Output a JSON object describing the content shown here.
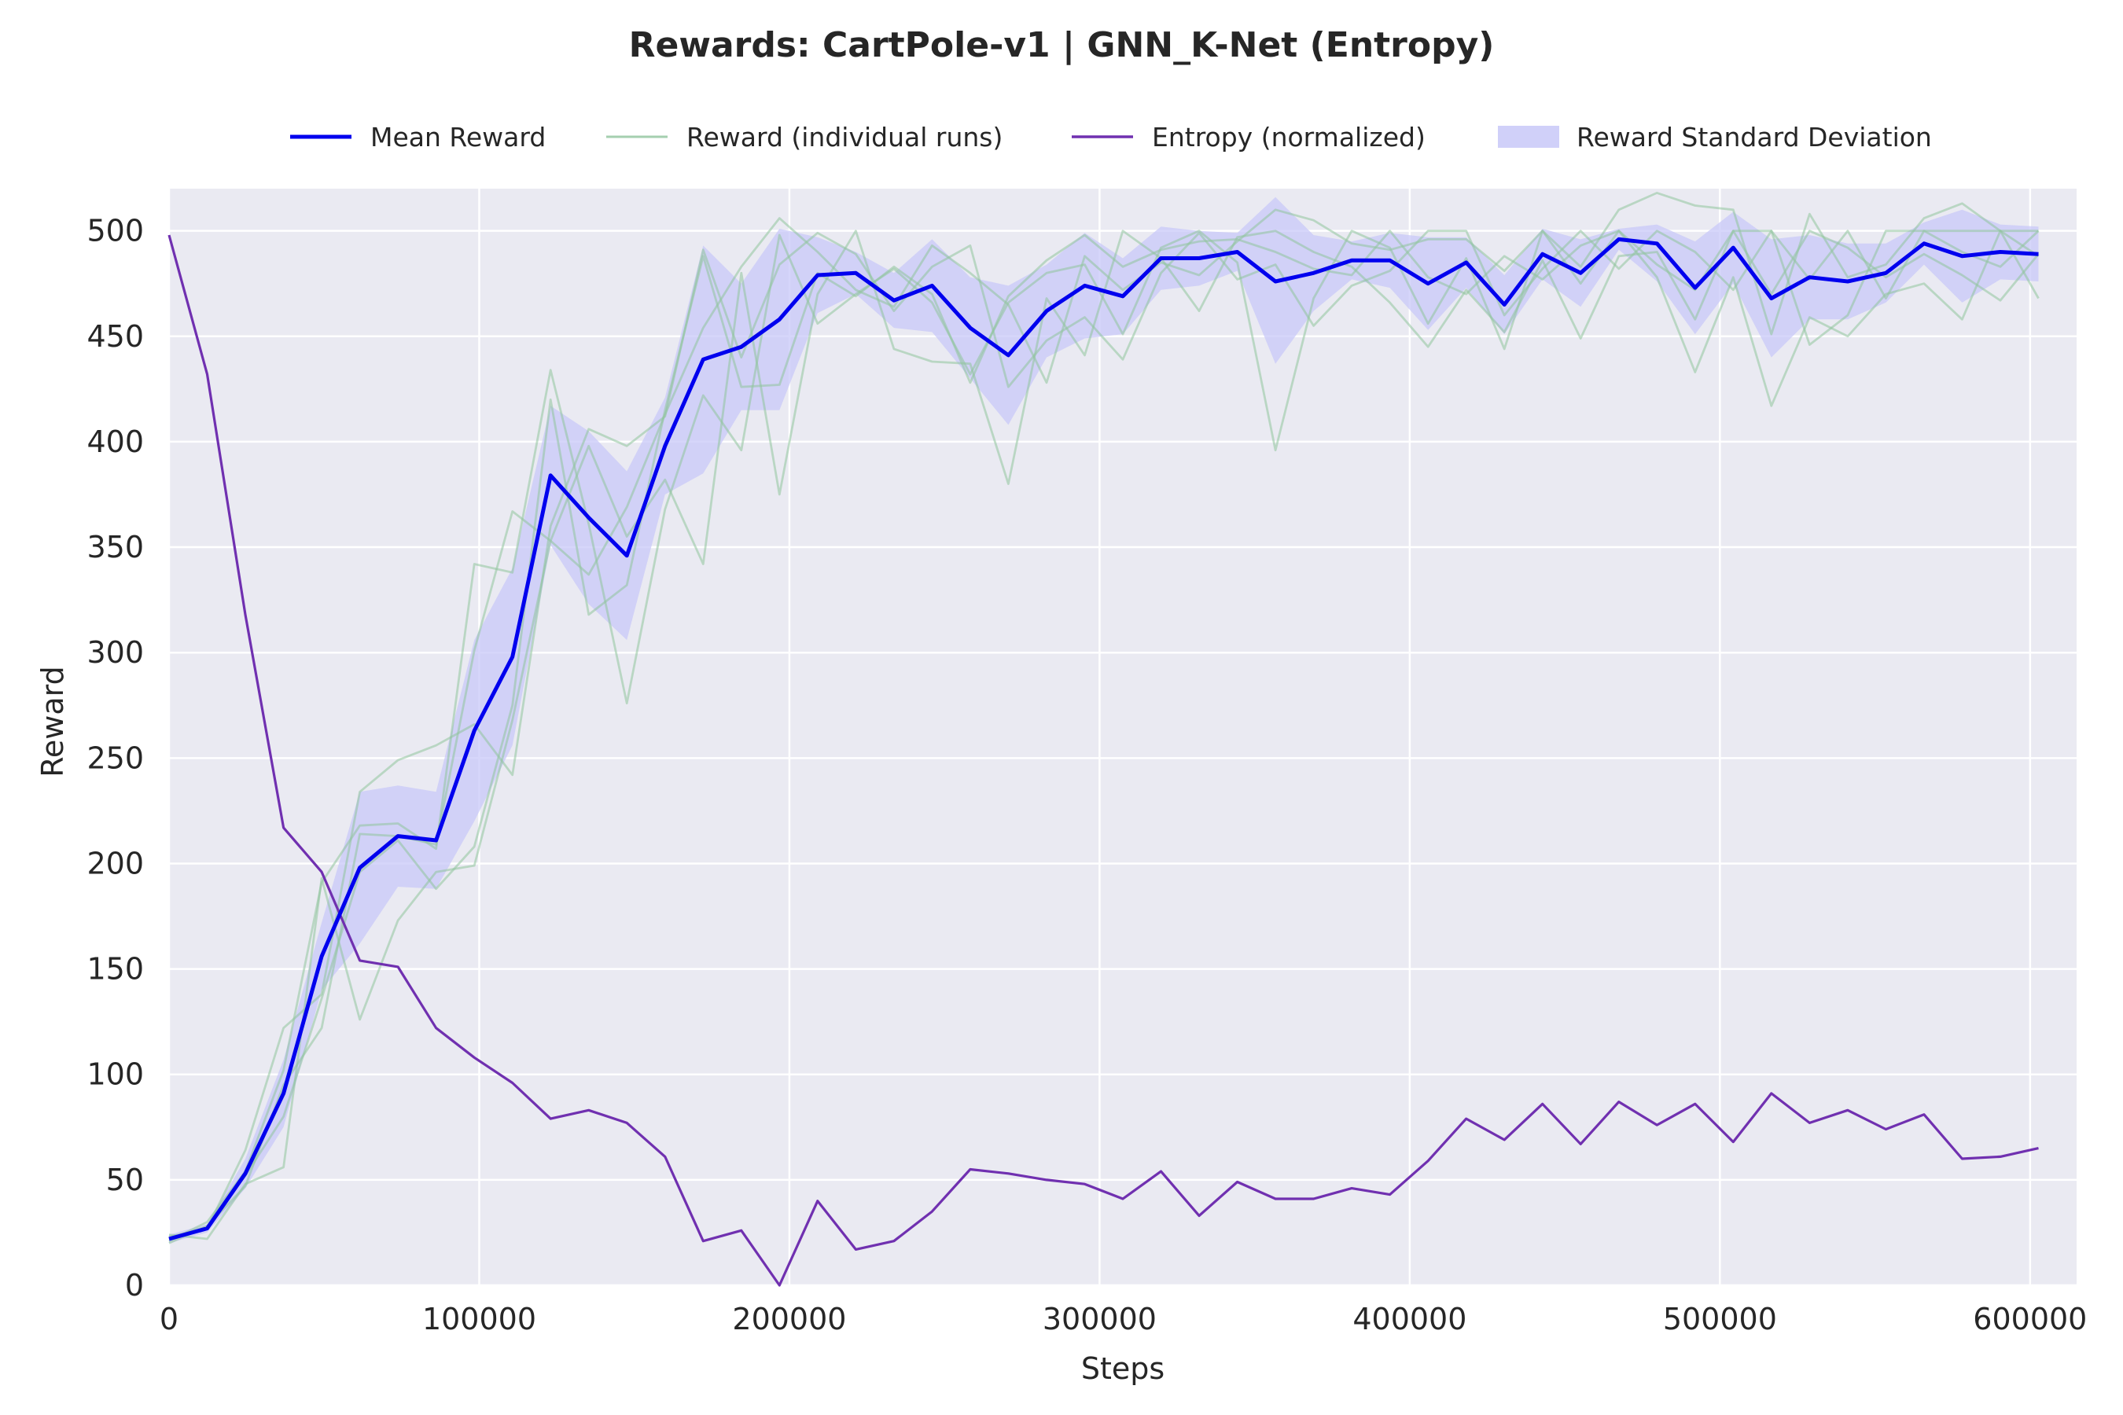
{
  "chart_data": {
    "type": "line",
    "title": "Rewards: CartPole-v1 | GNN_K-Net (Entropy)",
    "xlabel": "Steps",
    "ylabel": "Reward",
    "xlim": [
      0,
      615000
    ],
    "ylim": [
      0,
      520
    ],
    "xticks": [
      0,
      100000,
      200000,
      300000,
      400000,
      500000,
      600000
    ],
    "xtick_labels": [
      "0",
      "100000",
      "200000",
      "300000",
      "400000",
      "500000",
      "600000"
    ],
    "yticks": [
      0,
      50,
      100,
      150,
      200,
      250,
      300,
      350,
      400,
      450,
      500
    ],
    "ytick_labels": [
      "0",
      "50",
      "100",
      "150",
      "200",
      "250",
      "300",
      "350",
      "400",
      "450",
      "500"
    ],
    "grid": true,
    "legend_position": "top-center",
    "legend": [
      {
        "label": "Mean Reward",
        "kind": "line",
        "color": "#0000ee"
      },
      {
        "label": "Reward (individual runs)",
        "kind": "line",
        "color": "#8fc49c"
      },
      {
        "label": "Entropy (normalized)",
        "kind": "line",
        "color": "#7030b0"
      },
      {
        "label": "Reward Standard Deviation",
        "kind": "band",
        "color": "#c8c8f8"
      }
    ],
    "x": [
      0,
      12300,
      24600,
      36900,
      49200,
      61500,
      73800,
      86100,
      98400,
      110700,
      123000,
      135300,
      147600,
      159900,
      172200,
      184500,
      196800,
      209100,
      221400,
      233700,
      246000,
      258300,
      270600,
      282900,
      295200,
      307500,
      319800,
      332100,
      344400,
      356700,
      369000,
      381300,
      393600,
      405900,
      418200,
      430500,
      442800,
      455100,
      467400,
      479700,
      492000,
      504300,
      516600,
      528900,
      541200,
      553500,
      565800,
      578100,
      590400,
      602700
    ],
    "series": [
      {
        "name": "Mean Reward",
        "color": "#0000ee",
        "values": [
          22,
          27,
          53,
          91,
          156,
          198,
          213,
          211,
          263,
          298,
          384,
          364,
          346,
          398,
          439,
          445,
          458,
          479,
          480,
          467,
          474,
          454,
          441,
          462,
          474,
          469,
          487,
          487,
          490,
          476,
          480,
          486,
          486,
          475,
          485,
          465,
          489,
          480,
          496,
          494,
          473,
          492,
          468,
          478,
          476,
          480,
          494,
          488,
          490,
          489
        ]
      },
      {
        "name": "Entropy (normalized)",
        "color": "#7030b0",
        "values": [
          498,
          432,
          318,
          217,
          196,
          154,
          151,
          122,
          108,
          96,
          79,
          83,
          77,
          61,
          21,
          26,
          0,
          40,
          17,
          21,
          35,
          55,
          53,
          50,
          48,
          41,
          54,
          33,
          49,
          41,
          41,
          46,
          43,
          59,
          79,
          69,
          86,
          67,
          87,
          76,
          86,
          68,
          91,
          77,
          83,
          74,
          81,
          60,
          61,
          65
        ]
      }
    ],
    "individual_runs": [
      {
        "values": [
          21,
          30,
          54,
          102,
          191,
          218,
          219,
          207,
          342,
          338,
          434,
          361,
          276,
          368,
          422,
          396,
          498,
          456,
          470,
          482,
          466,
          432,
          466,
          480,
          484,
          451,
          492,
          500,
          485,
          396,
          468,
          500,
          492,
          456,
          487,
          444,
          500,
          475,
          500,
          478,
          433,
          478,
          417,
          459,
          450,
          470,
          475,
          458,
          500,
          468
        ]
      },
      {
        "values": [
          24,
          22,
          48,
          56,
          193,
          126,
          173,
          196,
          199,
          268,
          353,
          398,
          355,
          382,
          342,
          480,
          375,
          470,
          500,
          444,
          438,
          437,
          380,
          468,
          441,
          500,
          487,
          462,
          497,
          500,
          490,
          483,
          466,
          445,
          472,
          452,
          486,
          449,
          488,
          490,
          458,
          500,
          500,
          446,
          460,
          500,
          500,
          500,
          500,
          500
        ]
      },
      {
        "values": [
          23,
          27,
          64,
          122,
          138,
          234,
          249,
          256,
          266,
          242,
          360,
          406,
          398,
          412,
          491,
          440,
          484,
          499,
          489,
          462,
          483,
          493,
          426,
          448,
          459,
          439,
          480,
          499,
          477,
          484,
          455,
          474,
          481,
          500,
          500,
          460,
          482,
          500,
          482,
          500,
          490,
          472,
          500,
          477,
          500,
          468,
          500,
          490,
          483,
          500
        ]
      },
      {
        "values": [
          20,
          28,
          52,
          80,
          136,
          196,
          211,
          188,
          208,
          275,
          420,
          318,
          332,
          415,
          488,
          426,
          427,
          480,
          469,
          483,
          470,
          428,
          469,
          486,
          498,
          483,
          491,
          495,
          496,
          490,
          482,
          479,
          500,
          478,
          470,
          488,
          477,
          493,
          500,
          484,
          472,
          500,
          470,
          500,
          492,
          478,
          489,
          479,
          467,
          489
        ]
      },
      {
        "values": [
          22,
          28,
          47,
          95,
          122,
          214,
          213,
          209,
          301,
          367,
          353,
          337,
          369,
          413,
          454,
          483,
          506,
          490,
          472,
          464,
          493,
          480,
          465,
          428,
          488,
          472,
          485,
          479,
          495,
          510,
          505,
          494,
          491,
          496,
          496,
          481,
          500,
          483,
          510,
          518,
          512,
          510,
          451,
          508,
          478,
          484,
          506,
          513,
          500,
          488
        ]
      }
    ],
    "std_band": {
      "lower": [
        20,
        25,
        46,
        75,
        140,
        162,
        189,
        188,
        220,
        256,
        351,
        323,
        306,
        375,
        385,
        415,
        415,
        461,
        470,
        454,
        452,
        430,
        408,
        440,
        449,
        451,
        472,
        474,
        481,
        437,
        462,
        477,
        473,
        453,
        473,
        451,
        477,
        464,
        491,
        476,
        451,
        475,
        440,
        458,
        458,
        466,
        484,
        466,
        477,
        476
      ],
      "upper": [
        24,
        29,
        60,
        107,
        172,
        234,
        237,
        234,
        306,
        340,
        417,
        405,
        386,
        421,
        493,
        475,
        501,
        497,
        490,
        480,
        496,
        478,
        474,
        484,
        499,
        487,
        502,
        500,
        499,
        516,
        498,
        495,
        499,
        497,
        497,
        479,
        501,
        496,
        501,
        503,
        495,
        509,
        496,
        498,
        494,
        494,
        504,
        510,
        503,
        502
      ]
    }
  }
}
